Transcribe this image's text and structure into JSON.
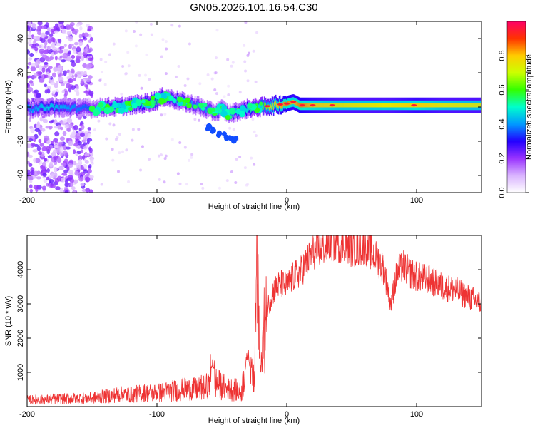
{
  "title": "GN05.2026.101.16.54.C30",
  "chart_data": [
    {
      "type": "heatmap",
      "id": "spectrogram",
      "xlabel": "Height of straight line (km)",
      "ylabel": "Frequency (Hz)",
      "xlim": [
        -200,
        150
      ],
      "ylim": [
        -50,
        50
      ],
      "xticks": [
        -200,
        -100,
        0,
        100
      ],
      "yticks": [
        -40,
        -20,
        0,
        20,
        40
      ],
      "colorbar": {
        "label": "Normalized spectral amplitude",
        "range": [
          0,
          1
        ],
        "ticks": [
          0.0,
          0.2,
          0.4,
          0.6,
          0.8
        ],
        "tick_labels": [
          "0.0",
          "0.2",
          "0.4",
          "0.6",
          "0.8"
        ],
        "colors": [
          "#ffffff",
          "#d9b3ff",
          "#9933ff",
          "#2200ff",
          "#0099ff",
          "#00ffcc",
          "#33ff00",
          "#ccff00",
          "#ffcc00",
          "#ff3300",
          "#ff0066"
        ]
      },
      "ridge": [
        {
          "x": -195,
          "f": -1,
          "a": 0.4
        },
        {
          "x": -185,
          "f": 0,
          "a": 0.45
        },
        {
          "x": -150,
          "f": -1,
          "a": 0.35
        },
        {
          "x": -140,
          "f": 0,
          "a": 0.45
        },
        {
          "x": -130,
          "f": 0,
          "a": 0.45
        },
        {
          "x": -120,
          "f": 1,
          "a": 0.45
        },
        {
          "x": -110,
          "f": 2,
          "a": 0.5
        },
        {
          "x": -100,
          "f": 4,
          "a": 0.55
        },
        {
          "x": -95,
          "f": 6,
          "a": 0.5
        },
        {
          "x": -90,
          "f": 5,
          "a": 0.45
        },
        {
          "x": -80,
          "f": 3,
          "a": 0.45
        },
        {
          "x": -70,
          "f": 1,
          "a": 0.4
        },
        {
          "x": -60,
          "f": -2,
          "a": 0.4
        },
        {
          "x": -55,
          "f": -3,
          "a": 0.4
        },
        {
          "x": -50,
          "f": -1,
          "a": 0.4
        },
        {
          "x": -45,
          "f": -4,
          "a": 0.4
        },
        {
          "x": -40,
          "f": -3,
          "a": 0.45
        },
        {
          "x": -35,
          "f": -2,
          "a": 0.45
        },
        {
          "x": -30,
          "f": -1,
          "a": 0.5
        },
        {
          "x": -20,
          "f": 0,
          "a": 0.6
        },
        {
          "x": -10,
          "f": 1,
          "a": 0.75
        },
        {
          "x": 0,
          "f": 2,
          "a": 0.85
        },
        {
          "x": 5,
          "f": 3,
          "a": 0.8
        },
        {
          "x": 10,
          "f": 1,
          "a": 0.85
        },
        {
          "x": 20,
          "f": 1,
          "a": 0.8
        },
        {
          "x": 40,
          "f": 1,
          "a": 0.75
        },
        {
          "x": 60,
          "f": 1,
          "a": 0.75
        },
        {
          "x": 80,
          "f": 1,
          "a": 0.75
        },
        {
          "x": 100,
          "f": 1,
          "a": 0.8
        },
        {
          "x": 120,
          "f": 1,
          "a": 0.75
        },
        {
          "x": 150,
          "f": 1,
          "a": 0.75
        }
      ],
      "secondary_branch": [
        {
          "x": -60,
          "f": -12,
          "a": 0.35
        },
        {
          "x": -55,
          "f": -14,
          "a": 0.35
        },
        {
          "x": -50,
          "f": -16,
          "a": 0.35
        },
        {
          "x": -45,
          "f": -18,
          "a": 0.35
        },
        {
          "x": -40,
          "f": -19,
          "a": 0.35
        }
      ],
      "noise_region": [
        -200,
        -150
      ]
    },
    {
      "type": "line",
      "id": "snr",
      "xlabel": "Height of straight line (km)",
      "ylabel": "SNR (10 * v/v)",
      "xlim": [
        -200,
        150
      ],
      "ylim": [
        0,
        5000
      ],
      "xticks": [
        -200,
        -100,
        0,
        100
      ],
      "yticks": [
        1000,
        2000,
        3000,
        4000
      ],
      "color": "#ee3333",
      "series": [
        {
          "name": "SNR",
          "x": [
            -200,
            -190,
            -180,
            -170,
            -160,
            -150,
            -140,
            -130,
            -120,
            -110,
            -100,
            -90,
            -80,
            -70,
            -60,
            -57,
            -55,
            -50,
            -45,
            -40,
            -35,
            -30,
            -28,
            -25,
            -23,
            -20,
            -18,
            -15,
            -12,
            -10,
            -5,
            0,
            5,
            10,
            15,
            20,
            25,
            30,
            35,
            40,
            45,
            50,
            55,
            60,
            65,
            70,
            75,
            80,
            85,
            90,
            95,
            100,
            110,
            120,
            130,
            140,
            150
          ],
          "y": [
            200,
            200,
            220,
            230,
            250,
            250,
            300,
            350,
            350,
            400,
            400,
            450,
            500,
            500,
            600,
            1400,
            700,
            600,
            500,
            500,
            400,
            1600,
            1200,
            800,
            3700,
            1000,
            2000,
            2900,
            3200,
            3400,
            3600,
            3500,
            3800,
            3900,
            4200,
            4500,
            4600,
            4700,
            4800,
            4750,
            4800,
            4600,
            4600,
            4700,
            4500,
            4300,
            4000,
            3000,
            3900,
            4100,
            3900,
            3800,
            3700,
            3500,
            3400,
            3200,
            3000
          ]
        }
      ]
    }
  ]
}
